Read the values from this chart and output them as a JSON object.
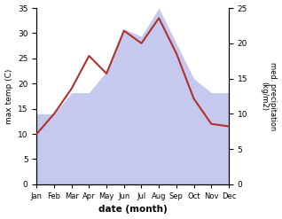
{
  "months": [
    "Jan",
    "Feb",
    "Mar",
    "Apr",
    "May",
    "Jun",
    "Jul",
    "Aug",
    "Sep",
    "Oct",
    "Nov",
    "Dec"
  ],
  "temperature": [
    10.0,
    14.0,
    19.0,
    25.5,
    22.0,
    30.5,
    28.0,
    33.0,
    26.0,
    17.0,
    12.0,
    11.5
  ],
  "precipitation": [
    10.0,
    10.0,
    13.0,
    13.0,
    16.0,
    22.0,
    21.0,
    25.0,
    20.0,
    15.0,
    13.0,
    13.0
  ],
  "temp_ylim": [
    0,
    35
  ],
  "precip_ylim": [
    0,
    25
  ],
  "xlabel": "date (month)",
  "ylabel_left": "max temp (C)",
  "ylabel_right": "med. precipitation\n(kg/m2)",
  "line_color": "#b03030",
  "fill_color": "#b0b8e8",
  "fill_alpha": 0.75,
  "background_color": "#ffffff",
  "temp_yticks": [
    0,
    5,
    10,
    15,
    20,
    25,
    30,
    35
  ],
  "precip_yticks": [
    0,
    5,
    10,
    15,
    20,
    25
  ],
  "figsize": [
    3.18,
    2.47
  ],
  "dpi": 100
}
